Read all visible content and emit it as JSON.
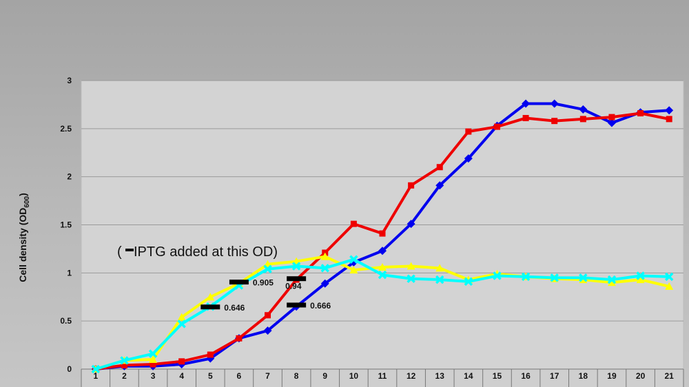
{
  "chart_data": {
    "type": "line",
    "title": "",
    "xlabel": "",
    "ylabel": "Cell density (OD",
    "ylabel_sub": "600",
    "ylabel_close": ")",
    "ylim": [
      0,
      3
    ],
    "yticks": [
      "0",
      "0.5",
      "1",
      "1.5",
      "2",
      "2.5",
      "3"
    ],
    "x": [
      "1",
      "2",
      "3",
      "4",
      "5",
      "6",
      "7",
      "8",
      "9",
      "10",
      "11",
      "12",
      "13",
      "14",
      "15",
      "16",
      "17",
      "18",
      "19",
      "20",
      "21"
    ],
    "grid": true,
    "legend": "none",
    "series": [
      {
        "color": "#0000ee",
        "marker": "diamond",
        "values": [
          0,
          0.03,
          0.03,
          0.05,
          0.11,
          0.32,
          0.4,
          0.65,
          0.89,
          1.11,
          1.23,
          1.51,
          1.91,
          2.19,
          2.53,
          2.76,
          2.76,
          2.7,
          2.56,
          2.67,
          2.69
        ]
      },
      {
        "color": "#ee0000",
        "marker": "square",
        "values": [
          0,
          0.04,
          0.05,
          0.08,
          0.15,
          0.32,
          0.56,
          0.93,
          1.21,
          1.51,
          1.41,
          1.91,
          2.1,
          2.47,
          2.52,
          2.61,
          2.58,
          2.6,
          2.62,
          2.66,
          2.6
        ]
      },
      {
        "color": "#ffff00",
        "marker": "triangle",
        "values": [
          0,
          0.09,
          0.1,
          0.54,
          0.75,
          0.89,
          1.09,
          1.12,
          1.17,
          1.03,
          1.06,
          1.07,
          1.05,
          0.93,
          0.99,
          0.96,
          0.94,
          0.93,
          0.9,
          0.93,
          0.86
        ]
      },
      {
        "color": "#00ffff",
        "marker": "x",
        "values": [
          0,
          0.09,
          0.16,
          0.47,
          0.65,
          0.87,
          1.04,
          1.07,
          1.05,
          1.14,
          0.98,
          0.94,
          0.93,
          0.91,
          0.97,
          0.96,
          0.95,
          0.95,
          0.93,
          0.97,
          0.96
        ]
      }
    ],
    "annotations": [
      {
        "x": 5,
        "y": 0.646,
        "text": "0.646"
      },
      {
        "x": 6,
        "y": 0.905,
        "text": "0.905"
      },
      {
        "x": 8,
        "y": 0.94,
        "text": "0.94"
      },
      {
        "x": 8,
        "y": 0.666,
        "text": "0.666"
      }
    ],
    "note": "(",
    "note_rest": " IPTG added at this OD)"
  }
}
